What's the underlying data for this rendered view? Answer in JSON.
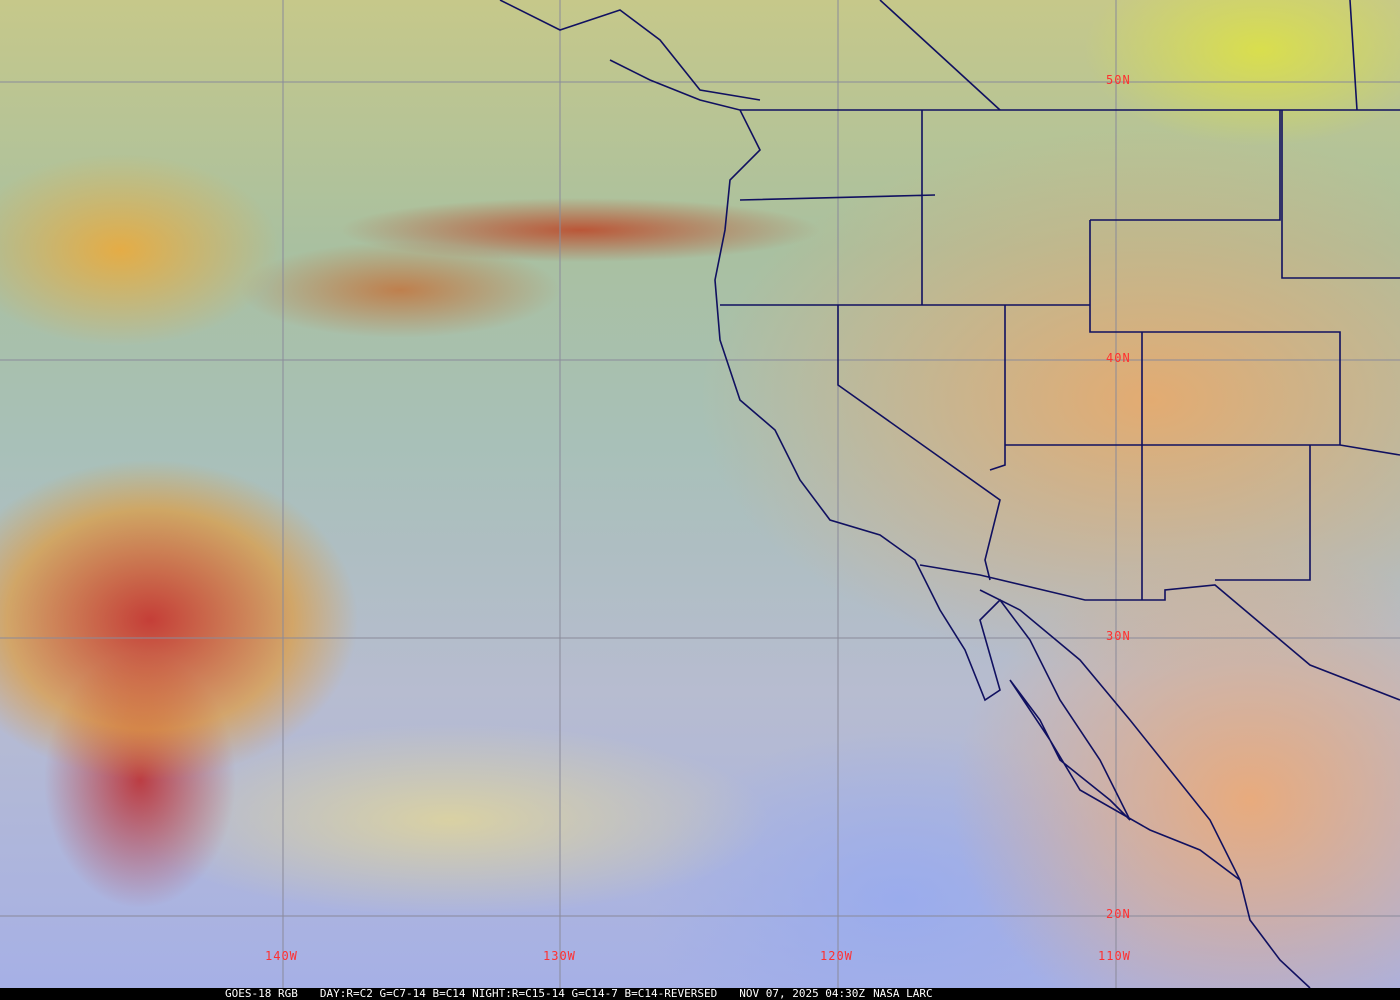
{
  "caption": {
    "satellite": "GOES-18 RGB",
    "recipe": "DAY:R=C2 G=C7-14 B=C14 NIGHT:R=C15-14 G=C14-7 B=C14-REVERSED",
    "timestamp": "NOV 07, 2025 04:30Z",
    "source": "NASA LARC"
  },
  "latitude_labels": [
    "50N",
    "40N",
    "30N",
    "20N"
  ],
  "longitude_labels": [
    "140W",
    "130W",
    "120W",
    "110W"
  ],
  "colors": {
    "grid": "#8a8a9a",
    "labels": "#ff3030",
    "borders": "#101060"
  }
}
